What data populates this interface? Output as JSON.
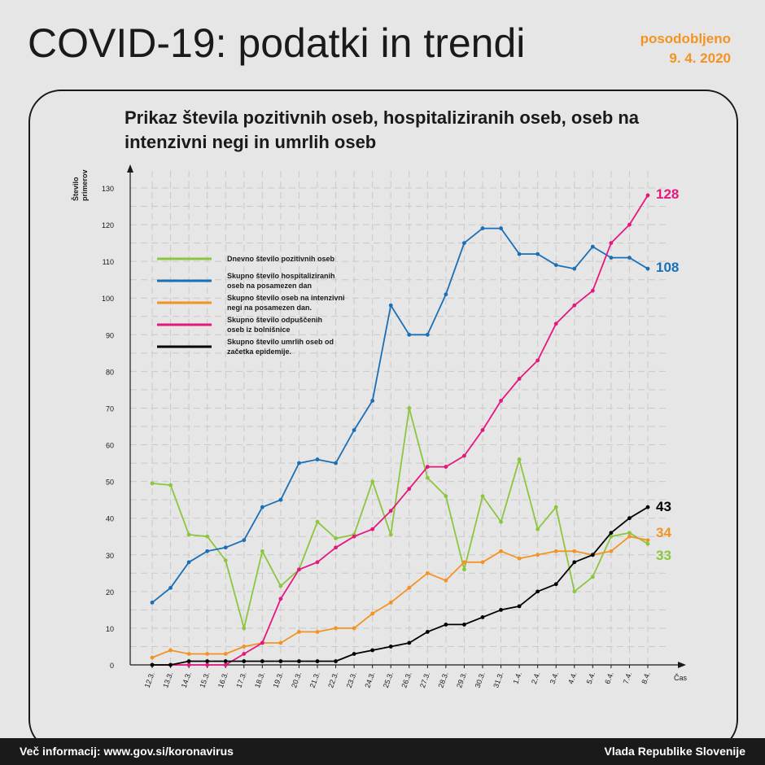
{
  "header": {
    "title": "COVID-19: podatki in trendi",
    "updated_label": "posodobljeno",
    "updated_date": "9. 4. 2020"
  },
  "footer": {
    "info": "Več informacij: www.gov.si/koronavirus",
    "org": "Vlada Republike Slovenije"
  },
  "chart_data": {
    "type": "line",
    "title": "Prikaz števila pozitivnih oseb, hospitaliziranih oseb, oseb na intenzivni negi in umrlih oseb",
    "xlabel": "Čas",
    "ylabel_lines": [
      "Število",
      "primerov"
    ],
    "ylim": [
      0,
      130
    ],
    "yticks": [
      0,
      10,
      20,
      30,
      40,
      50,
      60,
      70,
      80,
      90,
      100,
      110,
      120,
      130
    ],
    "grid": true,
    "legend_placement": "upper-left",
    "categories": [
      "12.3.",
      "13.3.",
      "14.3.",
      "15.3.",
      "16.3.",
      "17.3.",
      "18.3.",
      "19.3.",
      "20.3.",
      "21.3.",
      "22.3.",
      "23.3.",
      "24.3.",
      "25.3.",
      "26.3.",
      "27.3.",
      "28.3.",
      "29.3.",
      "30.3.",
      "31.3.",
      "1.4.",
      "2.4.",
      "3.4.",
      "4.4.",
      "5.4.",
      "6.4.",
      "7.4.",
      "8.4."
    ],
    "series": [
      {
        "name": "Dnevno število pozitivnih oseb",
        "legend_lines": [
          "Dnevno število pozitivnih oseb"
        ],
        "color": "#8cc63f",
        "end_label": "33",
        "values": [
          49.5,
          49,
          35.5,
          35,
          28.5,
          10,
          31,
          21.5,
          26,
          39,
          34.5,
          35.5,
          50,
          35.5,
          70,
          51,
          46,
          26,
          46,
          39,
          56,
          37,
          43,
          20,
          24,
          35,
          36,
          33
        ]
      },
      {
        "name": "Skupno število hospitaliziranih oseb na posamezen dan",
        "legend_lines": [
          "Skupno število hospitaliziranih",
          "oseb na posamezen dan"
        ],
        "color": "#1a6fb5",
        "end_label": "108",
        "values": [
          17,
          21,
          28,
          31,
          32,
          34,
          43,
          45,
          55,
          56,
          55,
          64,
          72,
          98,
          90,
          90,
          101,
          115,
          119,
          119,
          112,
          112,
          109,
          108,
          114,
          111,
          111,
          108
        ]
      },
      {
        "name": "Skupno število oseb na intenzivni negi na posamezen dan.",
        "legend_lines": [
          "Skupno število oseb na intenzivni",
          "negi na posamezen dan."
        ],
        "color": "#f39323",
        "end_label": "34",
        "values": [
          2,
          4,
          3,
          3,
          3,
          5,
          6,
          6,
          9,
          9,
          10,
          10,
          14,
          17,
          21,
          25,
          23,
          28,
          28,
          31,
          29,
          30,
          31,
          31,
          30,
          31,
          35,
          34
        ]
      },
      {
        "name": "Skupno število odpuščenih oseb iz bolnišnice",
        "legend_lines": [
          "Skupno število odpuščenih",
          "oseb iz bolnišnice"
        ],
        "color": "#e5177e",
        "end_label": "128",
        "values": [
          0,
          0,
          0,
          0,
          0,
          3,
          6,
          18,
          26,
          28,
          32,
          35,
          37,
          42,
          48,
          54,
          54,
          57,
          64,
          72,
          78,
          83,
          93,
          98,
          102,
          115,
          120,
          128
        ]
      },
      {
        "name": "Skupno število umrlih oseb od začetka epidemije.",
        "legend_lines": [
          "Skupno število umrlih oseb od",
          "začetka epidemije."
        ],
        "color": "#000000",
        "end_label": "43",
        "values": [
          0,
          0,
          1,
          1,
          1,
          1,
          1,
          1,
          1,
          1,
          1,
          3,
          4,
          5,
          6,
          9,
          11,
          11,
          13,
          15,
          16,
          20,
          22,
          28,
          30,
          36,
          40,
          43
        ]
      }
    ]
  }
}
